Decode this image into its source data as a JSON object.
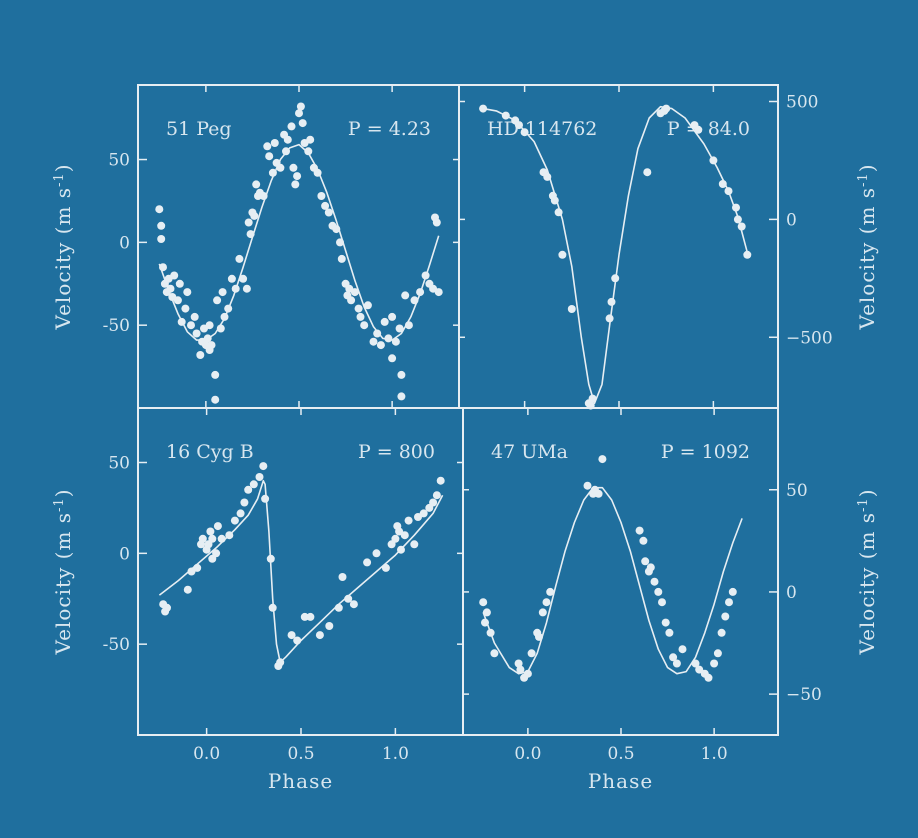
{
  "colors": {
    "background": "#1f6f9e",
    "foreground": "#e6eef3",
    "text": "#d7e6ef"
  },
  "chart_data": [
    {
      "type": "scatter",
      "name_label": "51 Peg",
      "period_label": "P = 4.23",
      "xlabel": "",
      "ylabel": "Velocity (m s",
      "ylabel_sup": "-1",
      "xlim": [
        -0.3,
        1.3
      ],
      "ylim": [
        -100,
        95
      ],
      "yticks": [
        50,
        0,
        -50
      ],
      "points": [
        [
          -0.25,
          20
        ],
        [
          -0.24,
          10
        ],
        [
          -0.24,
          2
        ],
        [
          -0.23,
          -15
        ],
        [
          -0.22,
          -25
        ],
        [
          -0.21,
          -30
        ],
        [
          -0.2,
          -22
        ],
        [
          -0.19,
          -28
        ],
        [
          -0.18,
          -33
        ],
        [
          -0.17,
          -20
        ],
        [
          -0.15,
          -35
        ],
        [
          -0.14,
          -25
        ],
        [
          -0.13,
          -48
        ],
        [
          -0.11,
          -40
        ],
        [
          -0.1,
          -30
        ],
        [
          -0.08,
          -50
        ],
        [
          -0.06,
          -45
        ],
        [
          -0.05,
          -55
        ],
        [
          -0.03,
          -68
        ],
        [
          -0.02,
          -60
        ],
        [
          -0.01,
          -52
        ],
        [
          0.0,
          -62
        ],
        [
          0.01,
          -58
        ],
        [
          0.02,
          -65
        ],
        [
          0.02,
          -50
        ],
        [
          0.03,
          -62
        ],
        [
          0.05,
          -80
        ],
        [
          0.05,
          -95
        ],
        [
          0.06,
          -35
        ],
        [
          0.08,
          -52
        ],
        [
          0.09,
          -30
        ],
        [
          0.1,
          -45
        ],
        [
          0.12,
          -40
        ],
        [
          0.14,
          -22
        ],
        [
          0.16,
          -28
        ],
        [
          0.18,
          -10
        ],
        [
          0.2,
          -22
        ],
        [
          0.22,
          -28
        ],
        [
          0.23,
          12
        ],
        [
          0.24,
          5
        ],
        [
          0.25,
          18
        ],
        [
          0.26,
          16
        ],
        [
          0.27,
          35
        ],
        [
          0.28,
          28
        ],
        [
          0.29,
          30
        ],
        [
          0.31,
          28
        ],
        [
          0.33,
          58
        ],
        [
          0.34,
          52
        ],
        [
          0.36,
          42
        ],
        [
          0.37,
          60
        ],
        [
          0.38,
          48
        ],
        [
          0.4,
          45
        ],
        [
          0.42,
          65
        ],
        [
          0.43,
          55
        ],
        [
          0.44,
          62
        ],
        [
          0.46,
          70
        ],
        [
          0.47,
          45
        ],
        [
          0.48,
          35
        ],
        [
          0.49,
          40
        ],
        [
          0.5,
          78
        ],
        [
          0.51,
          82
        ],
        [
          0.52,
          72
        ],
        [
          0.53,
          60
        ],
        [
          0.55,
          55
        ],
        [
          0.56,
          62
        ],
        [
          0.58,
          45
        ],
        [
          0.6,
          42
        ],
        [
          0.62,
          28
        ],
        [
          0.64,
          22
        ],
        [
          0.66,
          18
        ],
        [
          0.68,
          10
        ],
        [
          0.7,
          8
        ],
        [
          0.72,
          0
        ],
        [
          0.73,
          -10
        ],
        [
          0.75,
          -25
        ],
        [
          0.76,
          -32
        ],
        [
          0.77,
          -28
        ],
        [
          0.78,
          -35
        ],
        [
          0.8,
          -30
        ],
        [
          0.82,
          -40
        ],
        [
          0.83,
          -45
        ],
        [
          0.85,
          -50
        ],
        [
          0.87,
          -38
        ],
        [
          0.9,
          -60
        ],
        [
          0.92,
          -55
        ],
        [
          0.94,
          -62
        ],
        [
          0.96,
          -48
        ],
        [
          0.98,
          -58
        ],
        [
          1.0,
          -45
        ],
        [
          1.0,
          -70
        ],
        [
          1.02,
          -60
        ],
        [
          1.04,
          -52
        ],
        [
          1.05,
          -80
        ],
        [
          1.05,
          -93
        ],
        [
          1.07,
          -32
        ],
        [
          1.09,
          -50
        ],
        [
          1.12,
          -35
        ],
        [
          1.15,
          -30
        ],
        [
          1.18,
          -20
        ],
        [
          1.2,
          -25
        ],
        [
          1.22,
          -28
        ],
        [
          1.23,
          15
        ],
        [
          1.24,
          12
        ],
        [
          1.25,
          -30
        ]
      ],
      "fit": [
        [
          -0.25,
          -13
        ],
        [
          -0.2,
          -29
        ],
        [
          -0.15,
          -43
        ],
        [
          -0.1,
          -54
        ],
        [
          -0.05,
          -59
        ],
        [
          0.0,
          -59
        ],
        [
          0.05,
          -55
        ],
        [
          0.1,
          -46
        ],
        [
          0.15,
          -32
        ],
        [
          0.2,
          -15
        ],
        [
          0.25,
          3
        ],
        [
          0.3,
          21
        ],
        [
          0.35,
          37
        ],
        [
          0.4,
          50
        ],
        [
          0.45,
          57
        ],
        [
          0.5,
          59
        ],
        [
          0.55,
          54
        ],
        [
          0.6,
          44
        ],
        [
          0.65,
          30
        ],
        [
          0.7,
          13
        ],
        [
          0.75,
          -5
        ],
        [
          0.8,
          -23
        ],
        [
          0.85,
          -39
        ],
        [
          0.9,
          -51
        ],
        [
          0.95,
          -58
        ],
        [
          1.0,
          -59
        ],
        [
          1.05,
          -55
        ],
        [
          1.1,
          -45
        ],
        [
          1.15,
          -31
        ],
        [
          1.2,
          -14
        ],
        [
          1.25,
          4
        ]
      ]
    },
    {
      "type": "scatter",
      "name_label": "HD 114762",
      "period_label": "P = 84.0",
      "xlabel": "",
      "ylabel": "Velocity (m s",
      "ylabel_sup": "-1",
      "xlim": [
        -0.3,
        1.3
      ],
      "ylim": [
        -800,
        570
      ],
      "yticks": [
        500,
        0,
        -500
      ],
      "points": [
        [
          -0.22,
          470
        ],
        [
          -0.1,
          440
        ],
        [
          -0.05,
          420
        ],
        [
          -0.03,
          400
        ],
        [
          0.0,
          370
        ],
        [
          0.1,
          200
        ],
        [
          0.12,
          180
        ],
        [
          0.15,
          100
        ],
        [
          0.16,
          80
        ],
        [
          0.18,
          30
        ],
        [
          0.2,
          -150
        ],
        [
          0.25,
          -380
        ],
        [
          0.34,
          -780
        ],
        [
          0.35,
          -790
        ],
        [
          0.36,
          -760
        ],
        [
          0.45,
          -420
        ],
        [
          0.46,
          -350
        ],
        [
          0.48,
          -250
        ],
        [
          0.65,
          200
        ],
        [
          0.72,
          450
        ],
        [
          0.74,
          460
        ],
        [
          0.75,
          470
        ],
        [
          0.9,
          400
        ],
        [
          0.92,
          380
        ],
        [
          1.0,
          250
        ],
        [
          1.05,
          150
        ],
        [
          1.08,
          120
        ],
        [
          1.12,
          50
        ],
        [
          1.13,
          0
        ],
        [
          1.15,
          -30
        ],
        [
          1.18,
          -150
        ]
      ],
      "fit": [
        [
          -0.22,
          470
        ],
        [
          -0.15,
          460
        ],
        [
          -0.05,
          420
        ],
        [
          0.05,
          330
        ],
        [
          0.12,
          210
        ],
        [
          0.2,
          0
        ],
        [
          0.25,
          -200
        ],
        [
          0.3,
          -500
        ],
        [
          0.34,
          -700
        ],
        [
          0.37,
          -780
        ],
        [
          0.41,
          -700
        ],
        [
          0.45,
          -450
        ],
        [
          0.5,
          -150
        ],
        [
          0.55,
          100
        ],
        [
          0.6,
          300
        ],
        [
          0.66,
          430
        ],
        [
          0.72,
          478
        ],
        [
          0.78,
          470
        ],
        [
          0.85,
          430
        ],
        [
          0.95,
          320
        ],
        [
          1.02,
          220
        ],
        [
          1.08,
          120
        ],
        [
          1.13,
          10
        ],
        [
          1.18,
          -140
        ]
      ]
    },
    {
      "type": "scatter",
      "name_label": "16 Cyg B",
      "period_label": "P = 800",
      "xlabel": "Phase",
      "ylabel": "Velocity (m s",
      "ylabel_sup": "-1",
      "xlim": [
        -0.3,
        1.3
      ],
      "xticks": [
        0.0,
        0.5,
        1.0
      ],
      "ylim": [
        -100,
        80
      ],
      "yticks": [
        50,
        0,
        -50
      ],
      "points": [
        [
          -0.23,
          -28
        ],
        [
          -0.22,
          -32
        ],
        [
          -0.21,
          -30
        ],
        [
          -0.1,
          -20
        ],
        [
          -0.08,
          -10
        ],
        [
          -0.05,
          -8
        ],
        [
          -0.03,
          5
        ],
        [
          -0.02,
          8
        ],
        [
          0.0,
          2
        ],
        [
          0.01,
          5
        ],
        [
          0.02,
          12
        ],
        [
          0.03,
          8
        ],
        [
          0.03,
          -3
        ],
        [
          0.05,
          0
        ],
        [
          0.06,
          15
        ],
        [
          0.08,
          8
        ],
        [
          0.12,
          10
        ],
        [
          0.15,
          18
        ],
        [
          0.18,
          22
        ],
        [
          0.2,
          28
        ],
        [
          0.22,
          35
        ],
        [
          0.25,
          38
        ],
        [
          0.28,
          42
        ],
        [
          0.3,
          48
        ],
        [
          0.31,
          30
        ],
        [
          0.34,
          -3
        ],
        [
          0.35,
          -30
        ],
        [
          0.38,
          -62
        ],
        [
          0.39,
          -60
        ],
        [
          0.45,
          -45
        ],
        [
          0.48,
          -48
        ],
        [
          0.52,
          -35
        ],
        [
          0.55,
          -35
        ],
        [
          0.6,
          -45
        ],
        [
          0.65,
          -40
        ],
        [
          0.7,
          -30
        ],
        [
          0.72,
          -13
        ],
        [
          0.75,
          -25
        ],
        [
          0.78,
          -28
        ],
        [
          0.85,
          -5
        ],
        [
          0.9,
          0
        ],
        [
          0.95,
          -8
        ],
        [
          0.98,
          5
        ],
        [
          1.0,
          8
        ],
        [
          1.01,
          15
        ],
        [
          1.02,
          12
        ],
        [
          1.03,
          2
        ],
        [
          1.05,
          10
        ],
        [
          1.07,
          18
        ],
        [
          1.1,
          5
        ],
        [
          1.12,
          20
        ],
        [
          1.15,
          22
        ],
        [
          1.18,
          25
        ],
        [
          1.2,
          28
        ],
        [
          1.22,
          32
        ],
        [
          1.24,
          40
        ]
      ],
      "fit": [
        [
          -0.25,
          -23
        ],
        [
          -0.15,
          -15
        ],
        [
          -0.05,
          -6
        ],
        [
          0.05,
          3
        ],
        [
          0.15,
          13
        ],
        [
          0.22,
          21
        ],
        [
          0.27,
          30
        ],
        [
          0.3,
          40
        ],
        [
          0.31,
          38
        ],
        [
          0.33,
          12
        ],
        [
          0.35,
          -25
        ],
        [
          0.37,
          -50
        ],
        [
          0.39,
          -60
        ],
        [
          0.42,
          -57
        ],
        [
          0.5,
          -48
        ],
        [
          0.6,
          -38
        ],
        [
          0.7,
          -28
        ],
        [
          0.8,
          -19
        ],
        [
          0.9,
          -10
        ],
        [
          1.0,
          -1
        ],
        [
          1.1,
          10
        ],
        [
          1.15,
          16
        ],
        [
          1.2,
          22
        ],
        [
          1.25,
          32
        ]
      ]
    },
    {
      "type": "scatter",
      "name_label": "47 UMa",
      "period_label": "P = 1092",
      "xlabel": "Phase",
      "ylabel": "Velocity (m s",
      "ylabel_sup": "-1",
      "xlim": [
        -0.3,
        1.3
      ],
      "xticks": [
        0.0,
        0.5,
        1.0
      ],
      "ylim": [
        -70,
        90
      ],
      "yticks": [
        50,
        0,
        -50
      ],
      "points": [
        [
          -0.24,
          -5
        ],
        [
          -0.23,
          -15
        ],
        [
          -0.22,
          -10
        ],
        [
          -0.2,
          -20
        ],
        [
          -0.18,
          -30
        ],
        [
          -0.05,
          -35
        ],
        [
          -0.04,
          -38
        ],
        [
          -0.02,
          -42
        ],
        [
          0.0,
          -40
        ],
        [
          0.02,
          -30
        ],
        [
          0.05,
          -20
        ],
        [
          0.06,
          -22
        ],
        [
          0.08,
          -10
        ],
        [
          0.1,
          -5
        ],
        [
          0.12,
          0
        ],
        [
          0.32,
          52
        ],
        [
          0.35,
          48
        ],
        [
          0.36,
          50
        ],
        [
          0.38,
          48
        ],
        [
          0.4,
          65
        ],
        [
          0.6,
          30
        ],
        [
          0.62,
          25
        ],
        [
          0.63,
          15
        ],
        [
          0.65,
          10
        ],
        [
          0.66,
          12
        ],
        [
          0.68,
          5
        ],
        [
          0.7,
          0
        ],
        [
          0.72,
          -5
        ],
        [
          0.74,
          -15
        ],
        [
          0.76,
          -20
        ],
        [
          0.78,
          -32
        ],
        [
          0.8,
          -35
        ],
        [
          0.83,
          -28
        ],
        [
          0.9,
          -35
        ],
        [
          0.92,
          -38
        ],
        [
          0.95,
          -40
        ],
        [
          0.97,
          -42
        ],
        [
          1.0,
          -35
        ],
        [
          1.02,
          -30
        ],
        [
          1.04,
          -20
        ],
        [
          1.06,
          -12
        ],
        [
          1.08,
          -5
        ],
        [
          1.1,
          0
        ]
      ],
      "fit": [
        [
          -0.24,
          -10
        ],
        [
          -0.18,
          -25
        ],
        [
          -0.1,
          -37
        ],
        [
          -0.05,
          -40
        ],
        [
          0.0,
          -39
        ],
        [
          0.05,
          -30
        ],
        [
          0.1,
          -15
        ],
        [
          0.15,
          3
        ],
        [
          0.2,
          20
        ],
        [
          0.25,
          34
        ],
        [
          0.3,
          45
        ],
        [
          0.35,
          51
        ],
        [
          0.4,
          51
        ],
        [
          0.45,
          45
        ],
        [
          0.5,
          34
        ],
        [
          0.55,
          20
        ],
        [
          0.6,
          3
        ],
        [
          0.65,
          -14
        ],
        [
          0.7,
          -28
        ],
        [
          0.75,
          -37
        ],
        [
          0.8,
          -40
        ],
        [
          0.85,
          -39
        ],
        [
          0.9,
          -32
        ],
        [
          0.95,
          -20
        ],
        [
          1.0,
          -6
        ],
        [
          1.05,
          10
        ],
        [
          1.1,
          24
        ],
        [
          1.15,
          36
        ]
      ]
    }
  ]
}
